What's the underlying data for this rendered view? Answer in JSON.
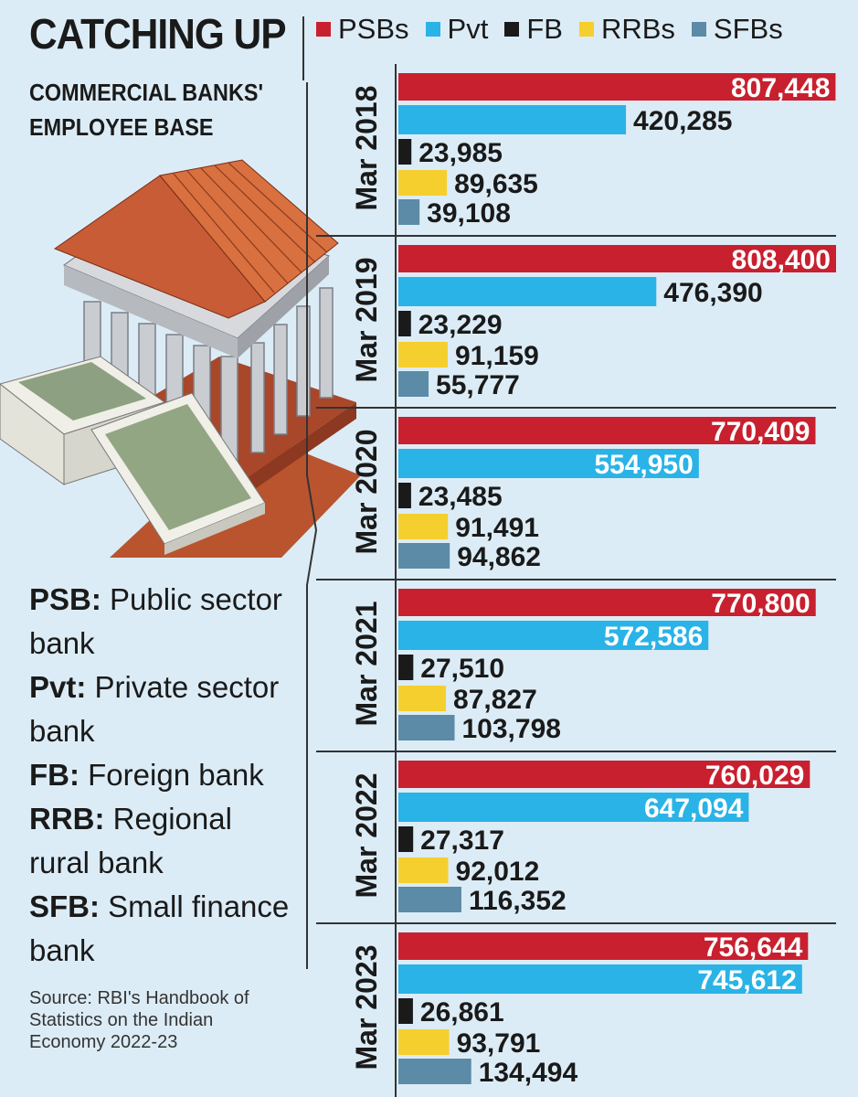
{
  "title": "CATCHING UP",
  "subtitle": "COMMERCIAL BANKS' EMPLOYEE BASE",
  "legend": [
    {
      "label": "PSBs",
      "color": "#c8202f"
    },
    {
      "label": "Pvt",
      "color": "#2ab3e6"
    },
    {
      "label": "FB",
      "color": "#1a1a1a"
    },
    {
      "label": "RRBs",
      "color": "#f5cf2e"
    },
    {
      "label": "SFBs",
      "color": "#5b8ba6"
    }
  ],
  "definitions": [
    {
      "term": "PSB:",
      "text": " Public sector bank"
    },
    {
      "term": "Pvt:",
      "text": " Private sector bank"
    },
    {
      "term": "FB:",
      "text": " Foreign bank"
    },
    {
      "term": "RRB:",
      "text": " Regional rural bank"
    },
    {
      "term": "SFB:",
      "text": " Small finance bank"
    }
  ],
  "source": "Source: RBI's Handbook of Statistics on the Indian Economy 2022-23",
  "chart_data": {
    "type": "bar",
    "orientation": "horizontal",
    "title": "CATCHING UP",
    "categories": [
      "Mar 2018",
      "Mar 2019",
      "Mar 2020",
      "Mar 2021",
      "Mar 2022",
      "Mar 2023"
    ],
    "series": [
      {
        "name": "PSBs",
        "color": "#c8202f",
        "values": [
          807448,
          808400,
          770409,
          770800,
          760029,
          756644
        ],
        "labels": [
          "807,448",
          "808,400",
          "770,409",
          "770,800",
          "760,029",
          "756,644"
        ]
      },
      {
        "name": "Pvt",
        "color": "#2ab3e6",
        "values": [
          420285,
          476390,
          554950,
          572586,
          647094,
          745612
        ],
        "labels": [
          "420,285",
          "476,390",
          "554,950",
          "572,586",
          "647,094",
          "745,612"
        ]
      },
      {
        "name": "FB",
        "color": "#1a1a1a",
        "values": [
          23985,
          23229,
          23485,
          27510,
          27317,
          26861
        ],
        "labels": [
          "23,985",
          "23,229",
          "23,485",
          "27,510",
          "27,317",
          "26,861"
        ]
      },
      {
        "name": "RRBs",
        "color": "#f5cf2e",
        "values": [
          89635,
          91159,
          91491,
          87827,
          92012,
          93791
        ],
        "labels": [
          "89,635",
          "91,159",
          "91,491",
          "87,827",
          "92,012",
          "93,791"
        ]
      },
      {
        "name": "SFBs",
        "color": "#5b8ba6",
        "values": [
          39108,
          55777,
          94862,
          103798,
          116352,
          134494
        ],
        "labels": [
          "39,108",
          "55,777",
          "94,862",
          "103,798",
          "116,352",
          "134,494"
        ]
      }
    ],
    "xlim": [
      0,
      808400
    ],
    "grid": false,
    "legend_position": "top"
  }
}
